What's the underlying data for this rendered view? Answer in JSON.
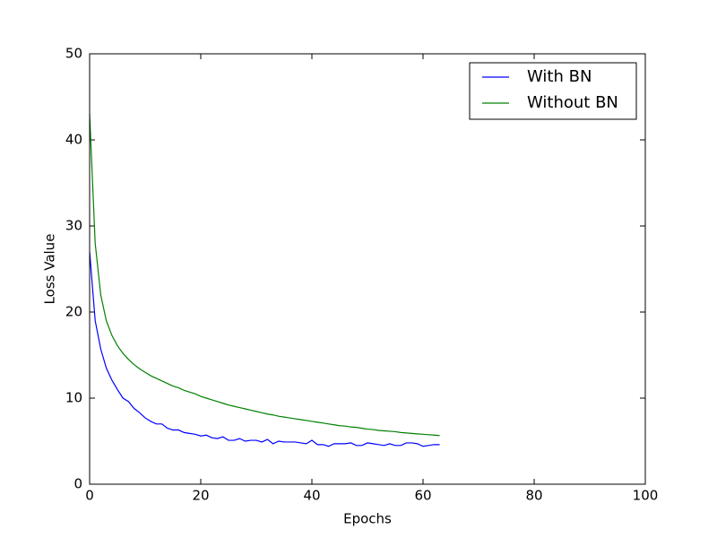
{
  "chart_data": {
    "type": "line",
    "xlabel": "Epochs",
    "ylabel": "Loss Value",
    "x": [
      0,
      1,
      2,
      3,
      4,
      5,
      6,
      7,
      8,
      9,
      10,
      11,
      12,
      13,
      14,
      15,
      16,
      17,
      18,
      19,
      20,
      21,
      22,
      23,
      24,
      25,
      26,
      27,
      28,
      29,
      30,
      31,
      32,
      33,
      34,
      35,
      36,
      37,
      38,
      39,
      40,
      41,
      42,
      43,
      44,
      45,
      46,
      47,
      48,
      49,
      50,
      51,
      52,
      53,
      54,
      55,
      56,
      57,
      58,
      59,
      60,
      61,
      62,
      63
    ],
    "series": [
      {
        "name": "With BN",
        "color": "#0000ff",
        "values": [
          27,
          19,
          15.7,
          13.5,
          12.1,
          11,
          10,
          9.6,
          8.8,
          8.3,
          7.7,
          7.3,
          7.0,
          7.0,
          6.5,
          6.3,
          6.3,
          6.0,
          5.9,
          5.8,
          5.6,
          5.7,
          5.4,
          5.3,
          5.5,
          5.1,
          5.1,
          5.3,
          5.0,
          5.1,
          5.1,
          4.9,
          5.2,
          4.7,
          5.0,
          4.9,
          4.9,
          4.9,
          4.8,
          4.7,
          5.1,
          4.6,
          4.6,
          4.4,
          4.7,
          4.7,
          4.7,
          4.8,
          4.5,
          4.5,
          4.8,
          4.7,
          4.6,
          4.5,
          4.7,
          4.5,
          4.5,
          4.8,
          4.8,
          4.7,
          4.4,
          4.5,
          4.6,
          4.6
        ]
      },
      {
        "name": "Without BN",
        "color": "#008000",
        "values": [
          43,
          28,
          22,
          19,
          17.3,
          16.1,
          15.2,
          14.5,
          13.9,
          13.4,
          13.0,
          12.6,
          12.3,
          12.0,
          11.7,
          11.4,
          11.2,
          10.9,
          10.7,
          10.5,
          10.2,
          10.0,
          9.8,
          9.6,
          9.4,
          9.2,
          9.05,
          8.9,
          8.75,
          8.6,
          8.45,
          8.3,
          8.15,
          8.05,
          7.9,
          7.8,
          7.7,
          7.6,
          7.5,
          7.4,
          7.3,
          7.2,
          7.1,
          7.0,
          6.9,
          6.8,
          6.75,
          6.65,
          6.6,
          6.5,
          6.4,
          6.35,
          6.25,
          6.2,
          6.15,
          6.1,
          6.0,
          5.95,
          5.9,
          5.85,
          5.8,
          5.75,
          5.7,
          5.65
        ]
      }
    ],
    "xlim": [
      0,
      100
    ],
    "xticks": [
      0,
      20,
      40,
      60,
      80,
      100
    ],
    "ylim": [
      0,
      50
    ],
    "yticks": [
      0,
      10,
      20,
      30,
      40,
      50
    ],
    "legend": "upper right"
  }
}
